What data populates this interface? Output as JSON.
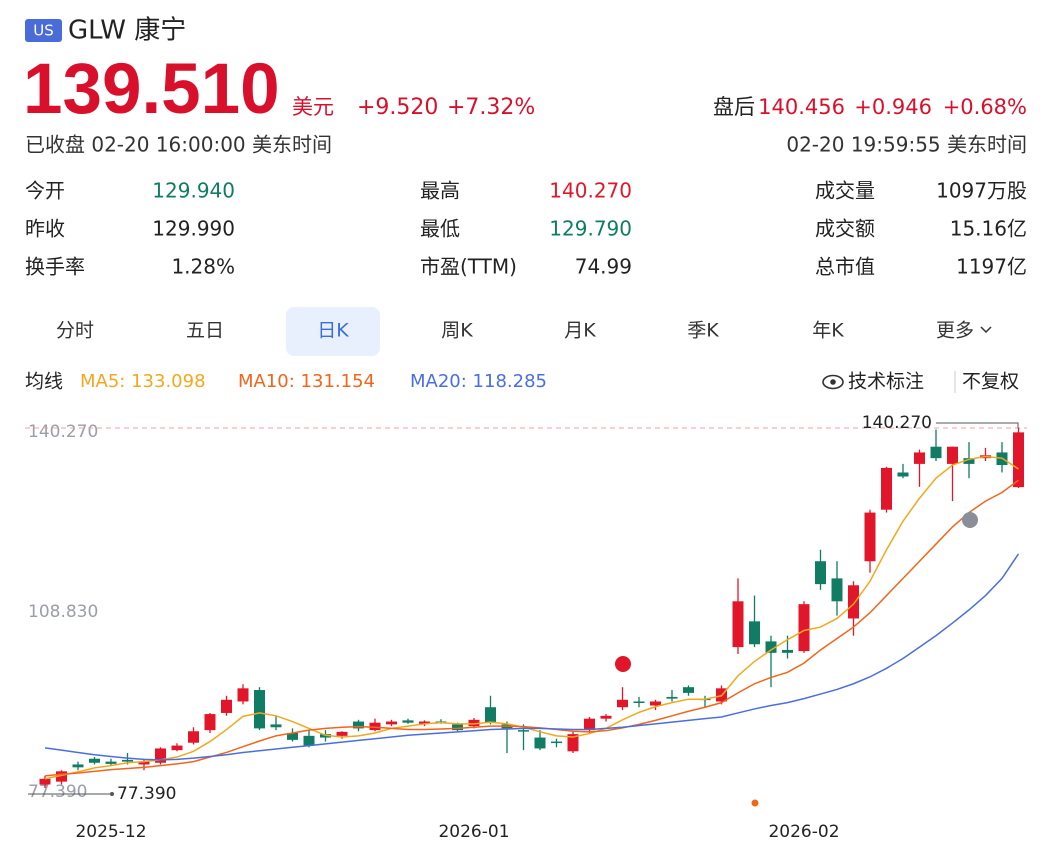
{
  "header": {
    "badge": "US",
    "name": "GLW 康宁",
    "price": "139.510",
    "currency": "美元",
    "change": "+9.520",
    "change_pct": "+7.32%",
    "status": "已收盘 02-20 16:00:00 美东时间",
    "after_label": "盘后",
    "after_price": "140.456",
    "after_change": "+0.946",
    "after_pct": "+0.68%",
    "after_time": "02-20 19:59:55 美东时间"
  },
  "stats": [
    [
      {
        "label": "今开",
        "value": "129.940",
        "color": "#0f7c63"
      },
      {
        "label": "最高",
        "value": "140.270",
        "color": "#e2162b"
      },
      {
        "label": "成交量",
        "value": "1097万股",
        "color": "#222222"
      }
    ],
    [
      {
        "label": "昨收",
        "value": "129.990",
        "color": "#222222"
      },
      {
        "label": "最低",
        "value": "129.790",
        "color": "#0f7c63"
      },
      {
        "label": "成交额",
        "value": "15.16亿",
        "color": "#222222"
      }
    ],
    [
      {
        "label": "换手率",
        "value": "1.28%",
        "color": "#222222"
      },
      {
        "label": "市盈(TTM)",
        "value": "74.99",
        "color": "#222222"
      },
      {
        "label": "总市值",
        "value": "1197亿",
        "color": "#222222"
      }
    ]
  ],
  "tabs": [
    "分时",
    "五日",
    "日K",
    "周K",
    "月K",
    "季K",
    "年K",
    "更多"
  ],
  "active_tab": 2,
  "ma_label": "均线",
  "tools": [
    "技术标注",
    "不复权"
  ],
  "chart_data": {
    "type": "candlestick",
    "categories": [
      null,
      null,
      null,
      null,
      "2025-12",
      null,
      null,
      null,
      null,
      null,
      null,
      null,
      null,
      null,
      null,
      null,
      null,
      null,
      null,
      null,
      null,
      null,
      null,
      null,
      null,
      null,
      "2026-01",
      null,
      null,
      null,
      null,
      null,
      null,
      null,
      null,
      null,
      null,
      null,
      null,
      null,
      null,
      null,
      null,
      null,
      null,
      null,
      "2026-02",
      null,
      null,
      null,
      null,
      null,
      null,
      null,
      null,
      null,
      null,
      null,
      null,
      null
    ],
    "open": [
      78.0,
      78.5,
      81.5,
      82.5,
      82.0,
      82.3,
      81.5,
      81.8,
      84.0,
      85.3,
      87.5,
      90.5,
      92.5,
      94.5,
      88.5,
      87.0,
      86.5,
      86.8,
      86.5,
      89.0,
      87.5,
      88.5,
      89.2,
      88.6,
      89.0,
      88.5,
      88.2,
      91.5,
      88.5,
      87.5,
      86.2,
      85.5,
      83.8,
      87.5,
      89.5,
      91.5,
      92.5,
      91.8,
      93.3,
      95.0,
      93.0,
      92.5,
      102.0,
      106.5,
      103.0,
      101.5,
      101.3,
      117.0,
      114.0,
      107.0,
      117.0,
      126.0,
      132.5,
      134.0,
      137.0,
      134.0,
      135.0,
      135.0,
      136.0,
      129.94
    ],
    "high": [
      79.5,
      80.5,
      82.0,
      82.8,
      82.5,
      83.5,
      82.5,
      84.5,
      85.2,
      88.0,
      90.5,
      93.5,
      95.5,
      95.0,
      90.0,
      87.8,
      87.5,
      87.5,
      87.3,
      89.3,
      89.5,
      89.3,
      89.5,
      89.2,
      89.4,
      88.8,
      89.6,
      93.5,
      89.0,
      88.5,
      87.5,
      86.0,
      87.2,
      89.8,
      90.3,
      95.0,
      93.3,
      92.8,
      94.5,
      95.3,
      93.5,
      95.3,
      114.0,
      111.0,
      104.0,
      104.0,
      110.0,
      119.0,
      117.0,
      113.5,
      126.0,
      133.5,
      134.0,
      136.5,
      140.0,
      137.0,
      137.8,
      136.8,
      137.8,
      140.27
    ],
    "low": [
      77.39,
      78.0,
      80.5,
      81.5,
      81.2,
      81.5,
      80.5,
      81.5,
      83.8,
      85.0,
      87.0,
      90.0,
      92.0,
      87.5,
      87.5,
      85.5,
      84.5,
      85.5,
      86.0,
      87.3,
      87.3,
      88.2,
      88.6,
      88.2,
      88.6,
      87.3,
      87.8,
      88.5,
      83.5,
      84.0,
      84.0,
      84.5,
      83.5,
      87.0,
      89.0,
      91.0,
      91.5,
      91.0,
      92.5,
      93.5,
      91.5,
      92.0,
      100.8,
      102.0,
      95.0,
      100.0,
      101.0,
      112.0,
      107.5,
      104.0,
      115.0,
      125.5,
      131.5,
      130.0,
      134.5,
      127.5,
      131.5,
      134.5,
      132.5,
      129.79
    ],
    "close": [
      79.0,
      80.3,
      81.0,
      81.8,
      81.6,
      82.0,
      82.0,
      84.3,
      84.8,
      87.3,
      90.3,
      92.8,
      94.8,
      87.8,
      88.0,
      85.8,
      84.8,
      86.2,
      87.2,
      87.8,
      88.8,
      89.0,
      88.8,
      89.0,
      88.8,
      87.5,
      89.3,
      88.8,
      87.8,
      87.3,
      84.3,
      85.4,
      86.8,
      89.5,
      90.0,
      92.8,
      92.3,
      92.5,
      93.0,
      94.0,
      92.8,
      94.8,
      110.0,
      102.5,
      101.0,
      101.0,
      109.5,
      113.0,
      110.0,
      112.8,
      125.5,
      133.3,
      131.8,
      136.0,
      135.0,
      137.0,
      134.0,
      135.5,
      133.8,
      139.51
    ],
    "up_color": "#e2162b",
    "down_color": "#0f7c63",
    "series": [
      {
        "name": "MA5: 133.098",
        "color": "#f2a81d",
        "values": [
          79.0,
          79.6,
          80.2,
          80.9,
          81.3,
          81.8,
          82.0,
          82.3,
          82.8,
          83.8,
          85.5,
          87.6,
          89.9,
          90.5,
          90.0,
          89.0,
          87.8,
          86.6,
          86.3,
          86.5,
          87.0,
          87.8,
          88.2,
          88.6,
          88.8,
          88.6,
          88.6,
          88.9,
          88.6,
          88.0,
          87.2,
          86.5,
          86.3,
          86.9,
          87.8,
          89.3,
          90.6,
          91.6,
          92.3,
          92.9,
          92.9,
          93.5,
          97.0,
          99.5,
          101.5,
          103.3,
          104.9,
          105.5,
          107.0,
          109.5,
          113.5,
          119.0,
          124.0,
          128.0,
          131.5,
          133.8,
          134.8,
          135.3,
          135.0,
          133.098
        ]
      },
      {
        "name": "MA10: 131.154",
        "color": "#f0661a",
        "values": [
          79.5,
          79.8,
          80.0,
          80.3,
          80.6,
          80.8,
          81.0,
          81.3,
          81.6,
          82.0,
          82.8,
          83.6,
          84.6,
          85.6,
          86.5,
          87.0,
          87.5,
          87.8,
          88.0,
          88.1,
          88.0,
          87.8,
          87.6,
          87.6,
          87.7,
          87.8,
          88.0,
          88.2,
          88.2,
          88.1,
          87.9,
          87.6,
          87.3,
          87.2,
          87.4,
          87.9,
          88.5,
          89.2,
          90.0,
          90.8,
          91.5,
          92.3,
          94.0,
          95.6,
          96.7,
          97.6,
          99.2,
          101.5,
          103.5,
          105.5,
          108.0,
          111.0,
          114.0,
          117.0,
          120.0,
          123.0,
          125.5,
          127.5,
          129.0,
          131.154
        ]
      },
      {
        "name": "MA20: 118.285",
        "color": "#4a6ee0",
        "values": [
          84.4,
          84.0,
          83.6,
          83.2,
          82.9,
          82.6,
          82.4,
          82.3,
          82.4,
          82.6,
          82.9,
          83.2,
          83.6,
          83.9,
          84.2,
          84.5,
          84.8,
          85.1,
          85.4,
          85.7,
          86.0,
          86.3,
          86.6,
          86.8,
          87.0,
          87.2,
          87.4,
          87.6,
          87.7,
          87.8,
          87.8,
          87.7,
          87.6,
          87.6,
          87.8,
          88.0,
          88.3,
          88.6,
          88.9,
          89.2,
          89.5,
          89.8,
          90.5,
          91.2,
          91.8,
          92.3,
          93.0,
          93.8,
          94.6,
          95.6,
          96.8,
          98.3,
          100.0,
          102.0,
          104.0,
          106.2,
          108.5,
          111.0,
          114.0,
          118.285
        ]
      }
    ],
    "ylim": [
      77.39,
      140.27
    ],
    "yticks": [
      {
        "value": 140.27,
        "label": "140.270"
      },
      {
        "value": 108.83,
        "label": "108.830"
      },
      {
        "value": 77.39,
        "label": "77.390"
      }
    ],
    "high_marker": {
      "value": 140.27,
      "label": "140.270"
    },
    "low_marker": {
      "value": 77.39,
      "label": "77.390"
    }
  }
}
